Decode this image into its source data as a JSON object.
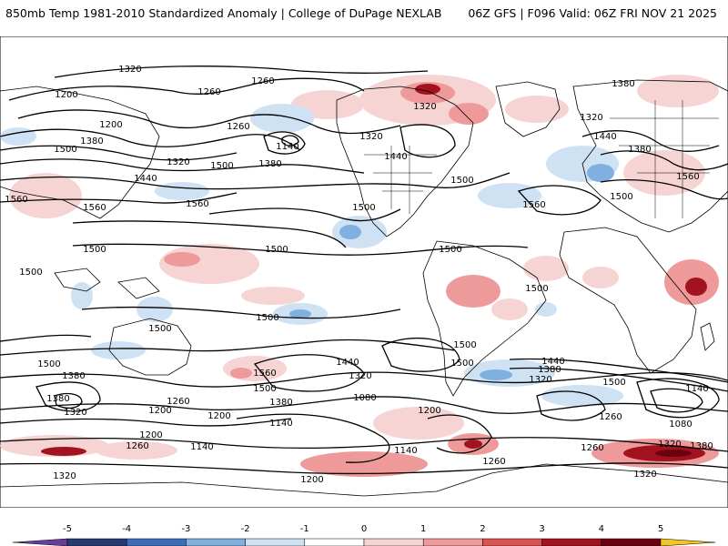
{
  "header": {
    "left": "850mb Temp 1981-2010 Standardized Anomaly | College of DuPage NEXLAB",
    "right": "06Z GFS | F096 Valid: 06Z FRI NOV 21 2025"
  },
  "colorbar": {
    "ticks": [
      "-5",
      "-4",
      "-3",
      "-2",
      "-1",
      "0",
      "1",
      "2",
      "3",
      "4",
      "5"
    ],
    "colors": [
      "#6a3d9a",
      "#263a73",
      "#3a6fb8",
      "#7fb0df",
      "#cfe2f3",
      "#ffffff",
      "#f7d4d4",
      "#ef9a9a",
      "#d9534f",
      "#a3121f",
      "#6b0010",
      "#f3c623"
    ]
  },
  "contour_labels": [
    "1320",
    "1260",
    "1200",
    "1260",
    "1200",
    "1260",
    "1320",
    "1380",
    "1320",
    "1440",
    "1380",
    "1500",
    "1380",
    "1500",
    "1440",
    "1320",
    "1140",
    "1320",
    "1380",
    "1560",
    "1440",
    "1500",
    "1560",
    "1500",
    "1560",
    "1560",
    "1500",
    "1500",
    "1500",
    "1500",
    "1500",
    "1500",
    "1500",
    "1500",
    "1500",
    "1500",
    "1500",
    "1560",
    "1380",
    "1440",
    "1320",
    "1440",
    "1380",
    "1320",
    "1500",
    "1140",
    "1260",
    "1200",
    "1380",
    "1140",
    "1080",
    "1200",
    "1260",
    "1140",
    "1200",
    "1260",
    "1140",
    "1320",
    "1380",
    "1260",
    "1080",
    "1320",
    "1200",
    "1320",
    "1500",
    "1560",
    "1260",
    "1380",
    "1320",
    "1200"
  ]
}
